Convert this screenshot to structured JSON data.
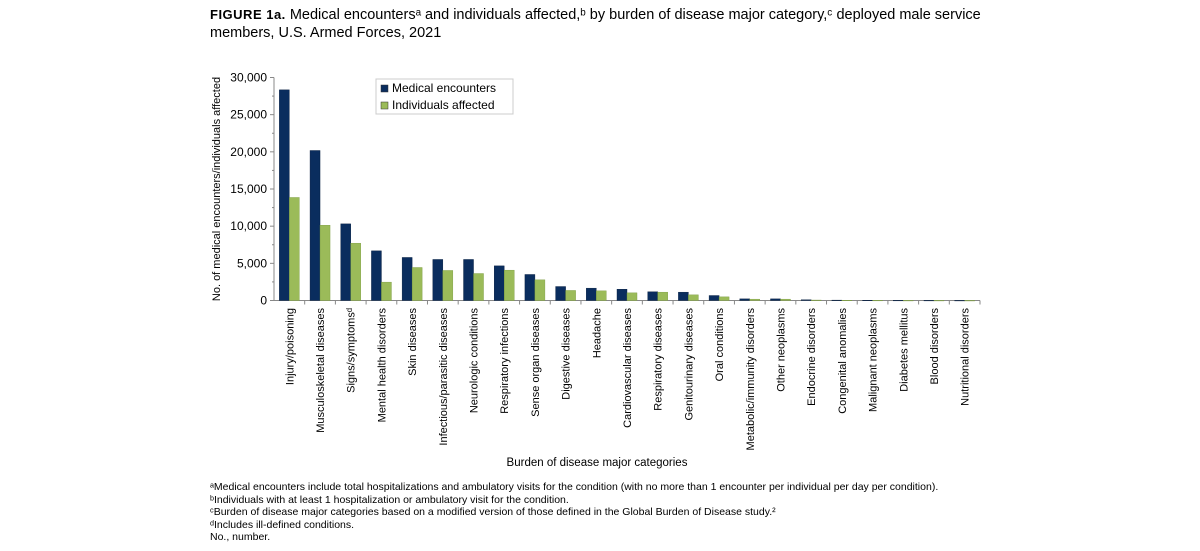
{
  "figure_label": "FIGURE 1a.",
  "title": "Medical encountersᵃ and individuals affected,ᵇ by burden of disease major category,ᶜ deployed male service members, U.S. Armed Forces, 2021",
  "footnotes": [
    "ᵃMedical encounters include total hospitalizations and ambulatory visits for the condition (with no more than 1 encounter per individual per day per condition).",
    "ᵇIndividuals with at least 1 hospitalization or ambulatory visit for the condition.",
    "ᶜBurden of disease major categories based on a modified version of those defined in the Global Burden of Disease study.²",
    "ᵈIncludes ill-defined conditions.",
    "No., number."
  ],
  "chart_data": {
    "type": "bar",
    "xlabel": "Burden of disease major categories",
    "ylabel": "No. of medical encounters/individuals affected",
    "ylim": [
      0,
      30000
    ],
    "yticks": [
      "0",
      "5,000",
      "10,000",
      "15,000",
      "20,000",
      "25,000",
      "30,000"
    ],
    "grid": false,
    "legend_position": "top-center",
    "categories": [
      "Injury/poisoning",
      "Musculoskeletal diseases",
      "Signs/symptomsᵈ",
      "Mental health disorders",
      "Skin diseases",
      "Infectious/parasitic diseases",
      "Neurologic conditions",
      "Respiratory infections",
      "Sense organ diseases",
      "Digestive diseases",
      "Headache",
      "Cardiovascular diseases",
      "Respiratory diseases",
      "Genitourinary diseases",
      "Oral conditions",
      "Metabolic/immunity disorders",
      "Other neoplasms",
      "Endocrine disorders",
      "Congenital anomalies",
      "Malignant neoplasms",
      "Diabetes mellitus",
      "Blood disorders",
      "Nutritional disorders"
    ],
    "series": [
      {
        "name": "Medical encounters",
        "color": "#0a2d5e",
        "values": [
          28340,
          20180,
          10310,
          6680,
          5790,
          5520,
          5520,
          4660,
          3500,
          1880,
          1660,
          1520,
          1170,
          1120,
          670,
          220,
          220,
          100,
          50,
          30,
          20,
          15,
          10
        ]
      },
      {
        "name": "Individuals affected",
        "color": "#9bbb59",
        "values": [
          13860,
          10130,
          7710,
          2470,
          4440,
          4040,
          3630,
          4080,
          2780,
          1350,
          1300,
          1030,
          1120,
          760,
          490,
          180,
          180,
          60,
          40,
          20,
          10,
          10,
          5
        ]
      }
    ]
  }
}
